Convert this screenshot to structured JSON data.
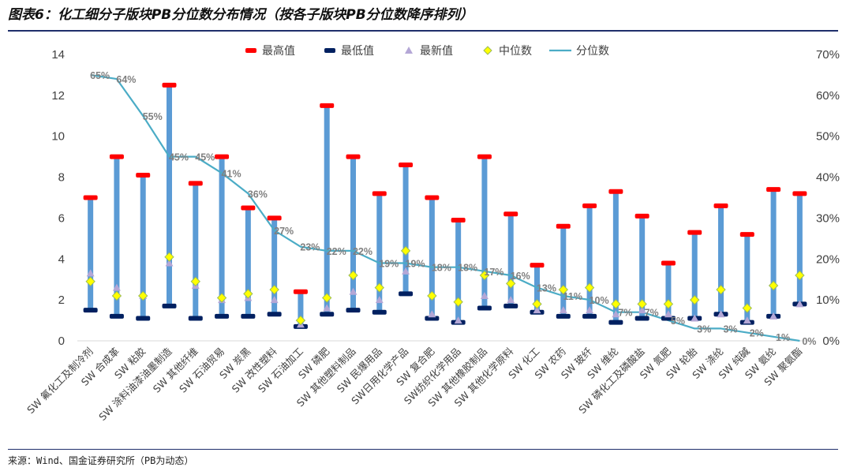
{
  "header": {
    "title": "图表6：化工细分子版块PB分位数分布情况（按各子版块PB分位数降序排列）"
  },
  "footer": {
    "source": "来源：Wind、国金证券研究所（PB为动态）"
  },
  "colors": {
    "bar": "#5b9bd5",
    "max": "#ff0000",
    "min": "#002060",
    "latest": "#b4a7d6",
    "median": "#ffff00",
    "median_outline": "#9bbb59",
    "percentile_line": "#4bacc6",
    "accent": "#1f2f6b"
  },
  "chart_data": {
    "type": "line",
    "title": "",
    "legend_position": "top",
    "grid": false,
    "y_left": {
      "min": 0,
      "max": 14,
      "ticks": [
        "0",
        "2",
        "4",
        "6",
        "8",
        "10",
        "12",
        "14"
      ]
    },
    "y_right": {
      "min": 0,
      "max": 70,
      "unit": "%",
      "ticks": [
        "0%",
        "10%",
        "20%",
        "30%",
        "40%",
        "50%",
        "60%",
        "70%"
      ]
    },
    "categories": [
      "SW 氟化工及制冷剂",
      "SW 合成革",
      "SW 粘胶",
      "SW 涂料油漆油墨制造",
      "SW 其他纤维",
      "SW 石油贸易",
      "SW 炭黑",
      "SW 改性塑料",
      "SW 石油加工",
      "SW 磷肥",
      "SW 其他塑料制品",
      "SW 民爆用品",
      "SW日用化学产品",
      "SW 复合肥",
      "SW纺织化学用品",
      "SW 其他橡胶制品",
      "SW 其他化学原料",
      "SW 化工",
      "SW 农药",
      "SW 玻纤",
      "SW 维纶",
      "SW 磷化工及磷酸盐",
      "SW 氮肥",
      "SW 轮胎",
      "SW 涤纶",
      "SW 纯碱",
      "SW 氨纶",
      "SW 聚氨酯"
    ],
    "series": [
      {
        "name": "最高值",
        "axis": "left",
        "marker": "dash",
        "values": [
          7.0,
          9.0,
          8.1,
          12.5,
          7.7,
          9.0,
          6.5,
          6.0,
          2.4,
          11.5,
          9.0,
          7.2,
          8.6,
          7.0,
          5.9,
          9.0,
          6.2,
          3.7,
          5.6,
          6.6,
          7.3,
          6.1,
          3.8,
          5.3,
          6.6,
          5.2,
          7.4,
          7.2
        ]
      },
      {
        "name": "最低值",
        "axis": "left",
        "marker": "dash",
        "values": [
          1.5,
          1.2,
          1.1,
          1.7,
          1.1,
          1.2,
          1.2,
          1.3,
          0.7,
          1.3,
          1.5,
          1.4,
          2.3,
          1.1,
          0.9,
          1.6,
          1.7,
          1.4,
          1.2,
          1.2,
          0.9,
          1.1,
          1.1,
          1.1,
          1.3,
          0.9,
          1.2,
          1.8
        ]
      },
      {
        "name": "最新值",
        "axis": "left",
        "marker": "triangle",
        "values": [
          3.3,
          2.6,
          2.2,
          3.8,
          2.7,
          2.0,
          2.1,
          2.0,
          0.8,
          1.6,
          2.4,
          2.0,
          3.4,
          1.3,
          1.0,
          2.2,
          2.0,
          1.5,
          1.5,
          1.5,
          1.3,
          1.5,
          1.3,
          1.1,
          1.3,
          1.0,
          1.2,
          1.8
        ]
      },
      {
        "name": "中位数",
        "axis": "left",
        "marker": "diamond",
        "values": [
          2.9,
          2.2,
          2.2,
          4.1,
          2.9,
          2.1,
          2.3,
          2.5,
          1.0,
          2.1,
          3.2,
          2.6,
          4.4,
          2.2,
          1.9,
          3.2,
          2.8,
          1.8,
          2.5,
          2.6,
          1.8,
          1.8,
          1.8,
          2.0,
          2.5,
          1.6,
          2.7,
          3.2
        ]
      },
      {
        "name": "分位数",
        "axis": "right",
        "marker": "line",
        "values": [
          65,
          64,
          55,
          45,
          45,
          41,
          36,
          27,
          23,
          22,
          22,
          19,
          19,
          18,
          18,
          17,
          16,
          13,
          11,
          10,
          7,
          7,
          5,
          3,
          3,
          2,
          1,
          0
        ],
        "labels": [
          "65%",
          "64%",
          "55%",
          "45%",
          "45%",
          "41%",
          "36%",
          "27%",
          "23%",
          "22%",
          "22%",
          "19%",
          "19%",
          "18%",
          "18%",
          "17%",
          "16%",
          "13%",
          "11%",
          "10%",
          "7%",
          "7%",
          "5%",
          "3%",
          "3%",
          "2%",
          "1%",
          "0%"
        ]
      }
    ]
  }
}
